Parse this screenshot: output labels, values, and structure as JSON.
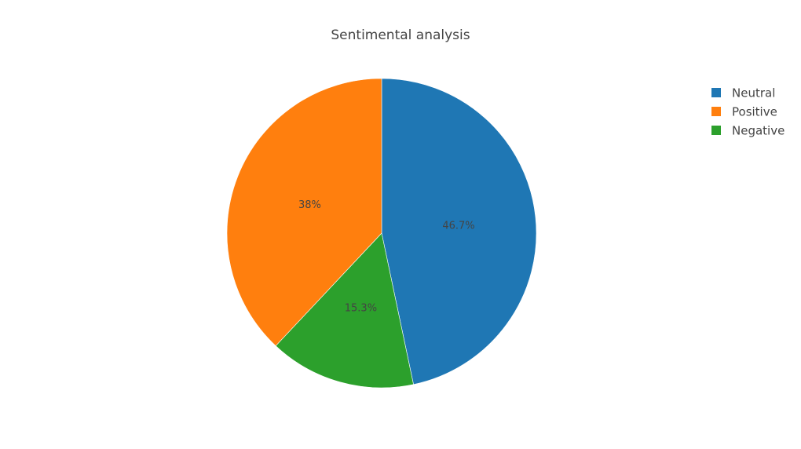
{
  "chart_data": {
    "type": "pie",
    "title": "Sentimental analysis",
    "slices": [
      {
        "label": "Neutral",
        "value": 46.7,
        "display": "46.7%",
        "color": "#1f77b4"
      },
      {
        "label": "Negative",
        "value": 15.3,
        "display": "15.3%",
        "color": "#2ca02c"
      },
      {
        "label": "Positive",
        "value": 38.0,
        "display": "38%",
        "color": "#ff7f0e"
      }
    ],
    "direction": "clockwise",
    "start_angle": "12 o'clock",
    "legend": {
      "position": "top-right",
      "order": [
        "Neutral",
        "Positive",
        "Negative"
      ]
    }
  }
}
